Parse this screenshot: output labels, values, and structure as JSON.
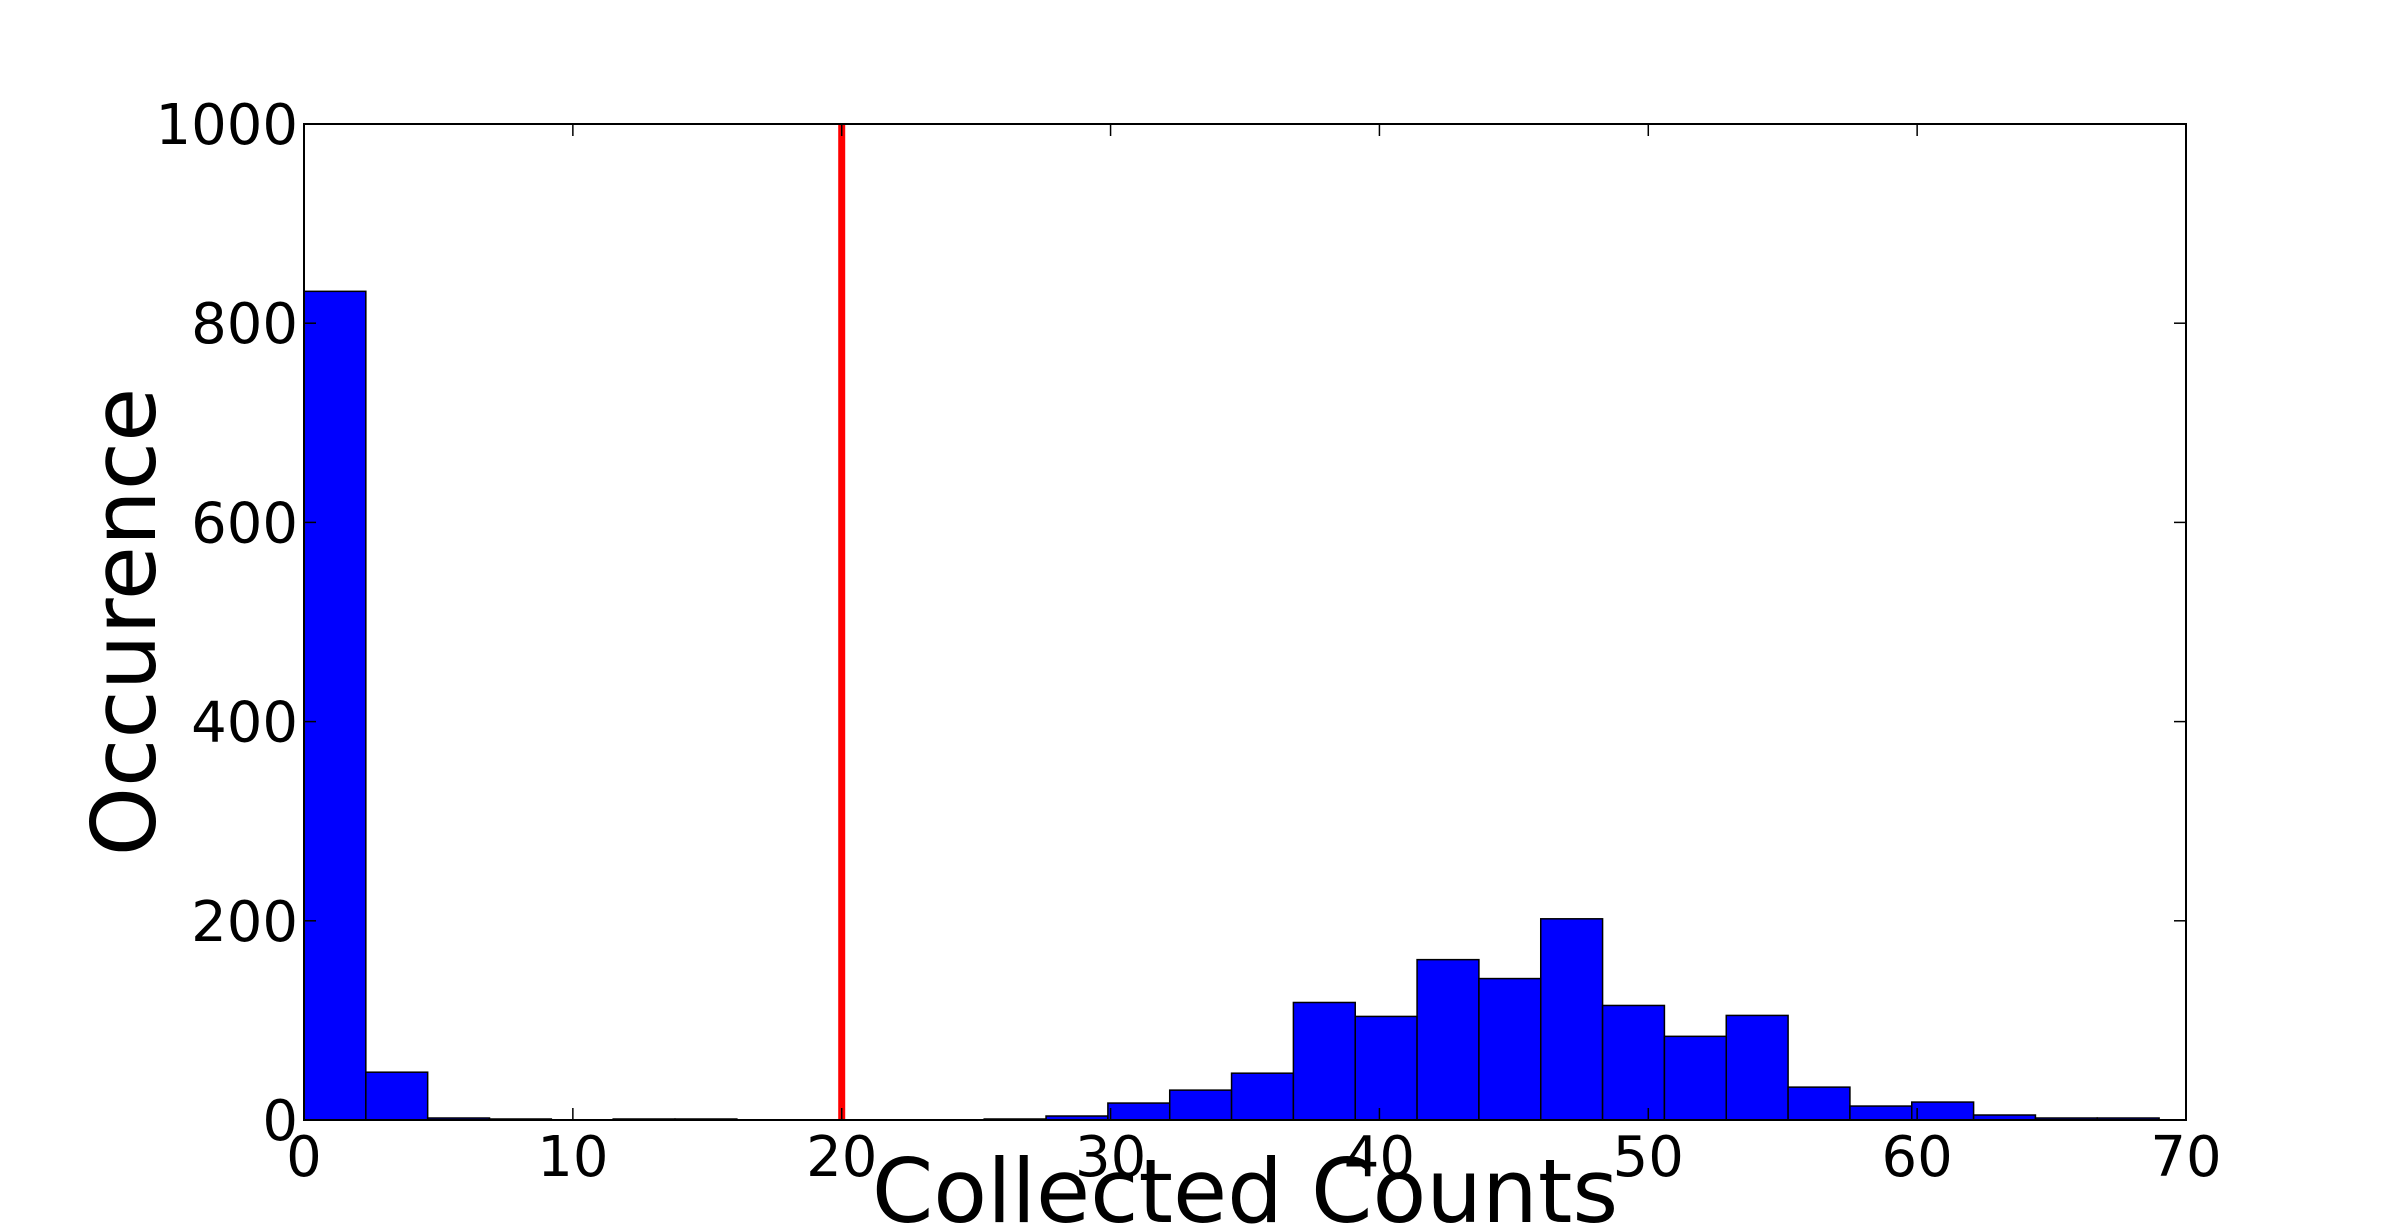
{
  "chart_data": {
    "type": "bar",
    "title": "",
    "xlabel": "Collected Counts",
    "ylabel": "Occurence",
    "xlim": [
      0,
      70
    ],
    "ylim": [
      0,
      1000
    ],
    "xticks": [
      0,
      10,
      20,
      30,
      40,
      50,
      60,
      70
    ],
    "yticks": [
      0,
      200,
      400,
      600,
      800,
      1000
    ],
    "grid": false,
    "bar_color": "#0000ff",
    "bin_width": 2.3,
    "bins": [
      {
        "x": 0.0,
        "y": 832
      },
      {
        "x": 2.3,
        "y": 48
      },
      {
        "x": 4.6,
        "y": 2
      },
      {
        "x": 6.9,
        "y": 1
      },
      {
        "x": 9.2,
        "y": 0
      },
      {
        "x": 11.5,
        "y": 1
      },
      {
        "x": 13.8,
        "y": 1
      },
      {
        "x": 16.1,
        "y": 0
      },
      {
        "x": 18.4,
        "y": 0
      },
      {
        "x": 20.7,
        "y": 0
      },
      {
        "x": 23.0,
        "y": 0
      },
      {
        "x": 25.3,
        "y": 1
      },
      {
        "x": 27.6,
        "y": 4
      },
      {
        "x": 29.9,
        "y": 17
      },
      {
        "x": 32.2,
        "y": 30
      },
      {
        "x": 34.5,
        "y": 47
      },
      {
        "x": 36.8,
        "y": 118
      },
      {
        "x": 39.1,
        "y": 104
      },
      {
        "x": 41.4,
        "y": 161
      },
      {
        "x": 43.7,
        "y": 142
      },
      {
        "x": 46.0,
        "y": 202
      },
      {
        "x": 48.3,
        "y": 115
      },
      {
        "x": 50.6,
        "y": 84
      },
      {
        "x": 52.9,
        "y": 105
      },
      {
        "x": 55.2,
        "y": 33
      },
      {
        "x": 57.5,
        "y": 14
      },
      {
        "x": 59.8,
        "y": 18
      },
      {
        "x": 62.1,
        "y": 5
      },
      {
        "x": 64.4,
        "y": 2
      },
      {
        "x": 66.7,
        "y": 2
      }
    ],
    "threshold": {
      "x": 20,
      "color": "#ff0000"
    }
  }
}
